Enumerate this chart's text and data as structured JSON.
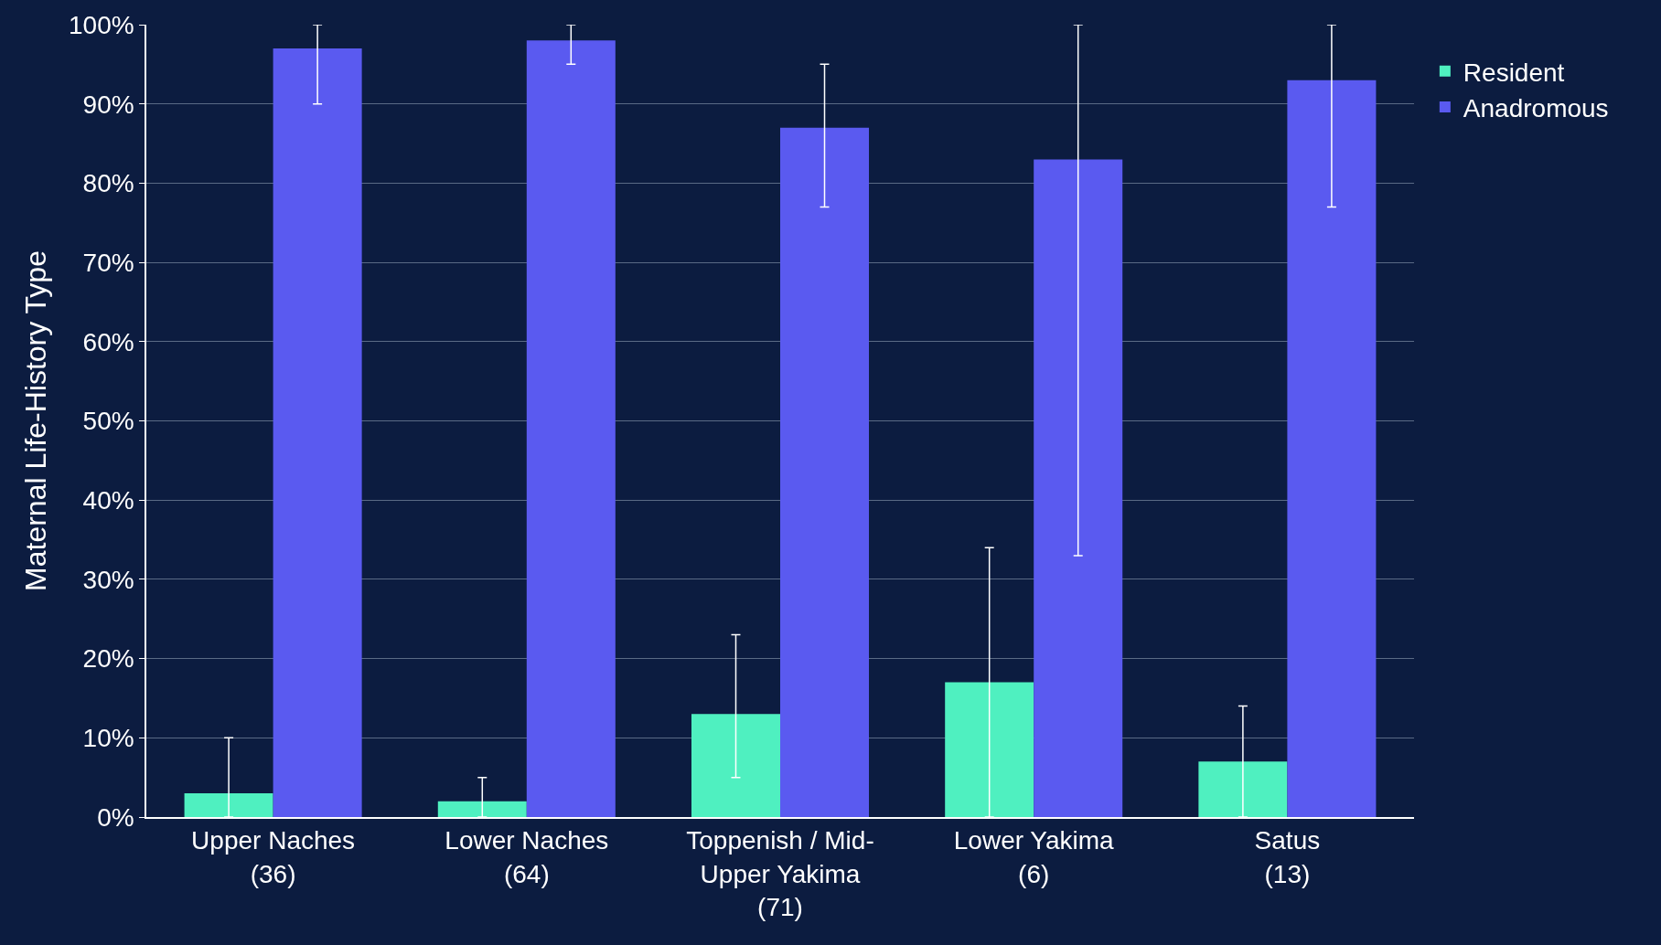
{
  "chart_data": {
    "type": "bar",
    "ylabel": "Maternal Life-History Type",
    "categories": [
      "Upper Naches\n(36)",
      "Lower Naches\n(64)",
      "Toppenish / Mid-\nUpper Yakima\n(71)",
      "Lower Yakima\n(6)",
      "Satus\n(13)"
    ],
    "series": [
      {
        "name": "Resident",
        "color": "#4ff0c0",
        "values": [
          3,
          2,
          13,
          17,
          7
        ],
        "errors": [
          [
            0,
            10
          ],
          [
            0,
            5
          ],
          [
            5,
            23
          ],
          [
            0,
            34
          ],
          [
            0,
            14
          ]
        ]
      },
      {
        "name": "Anadromous",
        "color": "#5a5af0",
        "values": [
          97,
          98,
          87,
          83,
          93
        ],
        "errors": [
          [
            90,
            100
          ],
          [
            95,
            100
          ],
          [
            77,
            95
          ],
          [
            33,
            100
          ],
          [
            77,
            100
          ]
        ]
      }
    ],
    "ylim": [
      0,
      100
    ],
    "yticks": [
      {
        "value": 0,
        "label": "0%"
      },
      {
        "value": 10,
        "label": "10%"
      },
      {
        "value": 20,
        "label": "20%"
      },
      {
        "value": 30,
        "label": "30%"
      },
      {
        "value": 40,
        "label": "40%"
      },
      {
        "value": 50,
        "label": "50%"
      },
      {
        "value": 60,
        "label": "60%"
      },
      {
        "value": 70,
        "label": "70%"
      },
      {
        "value": 80,
        "label": "80%"
      },
      {
        "value": 90,
        "label": "90%"
      },
      {
        "value": 100,
        "label": "100%"
      }
    ],
    "grid": "y",
    "legend": "top right"
  }
}
